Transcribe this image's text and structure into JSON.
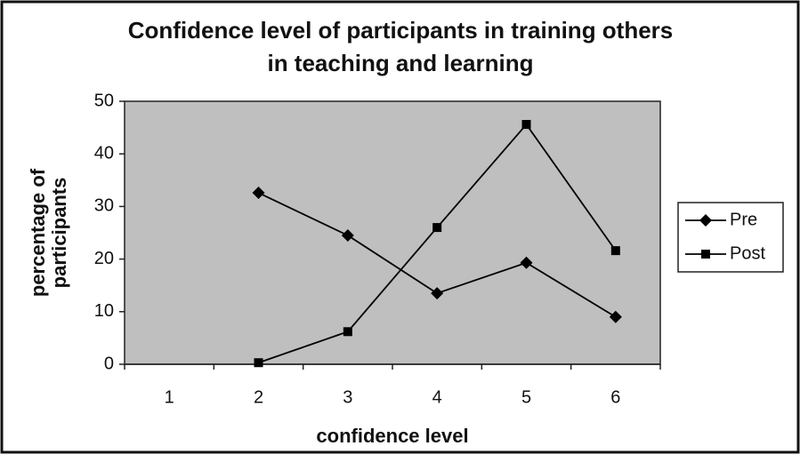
{
  "chart_data": {
    "type": "line",
    "title": [
      "Confidence level of participants in training others",
      "in teaching and learning"
    ],
    "xlabel": "confidence level",
    "ylabel": [
      "percentage of",
      "participants"
    ],
    "categories": [
      "1",
      "2",
      "3",
      "4",
      "5",
      "6"
    ],
    "series": [
      {
        "name": "Pre",
        "color": "#000000",
        "marker": "diamond",
        "values": [
          null,
          32.6,
          24.5,
          13.5,
          19.3,
          9
        ]
      },
      {
        "name": "Post",
        "color": "#000000",
        "marker": "square",
        "values": [
          null,
          0.3,
          6.2,
          26,
          45.6,
          21.6
        ]
      }
    ],
    "ylim": [
      0,
      50
    ],
    "yticks": [
      0,
      10,
      20,
      30,
      40,
      50
    ],
    "grid": false,
    "plot_background": "#bfbfbf",
    "legend": "right"
  }
}
